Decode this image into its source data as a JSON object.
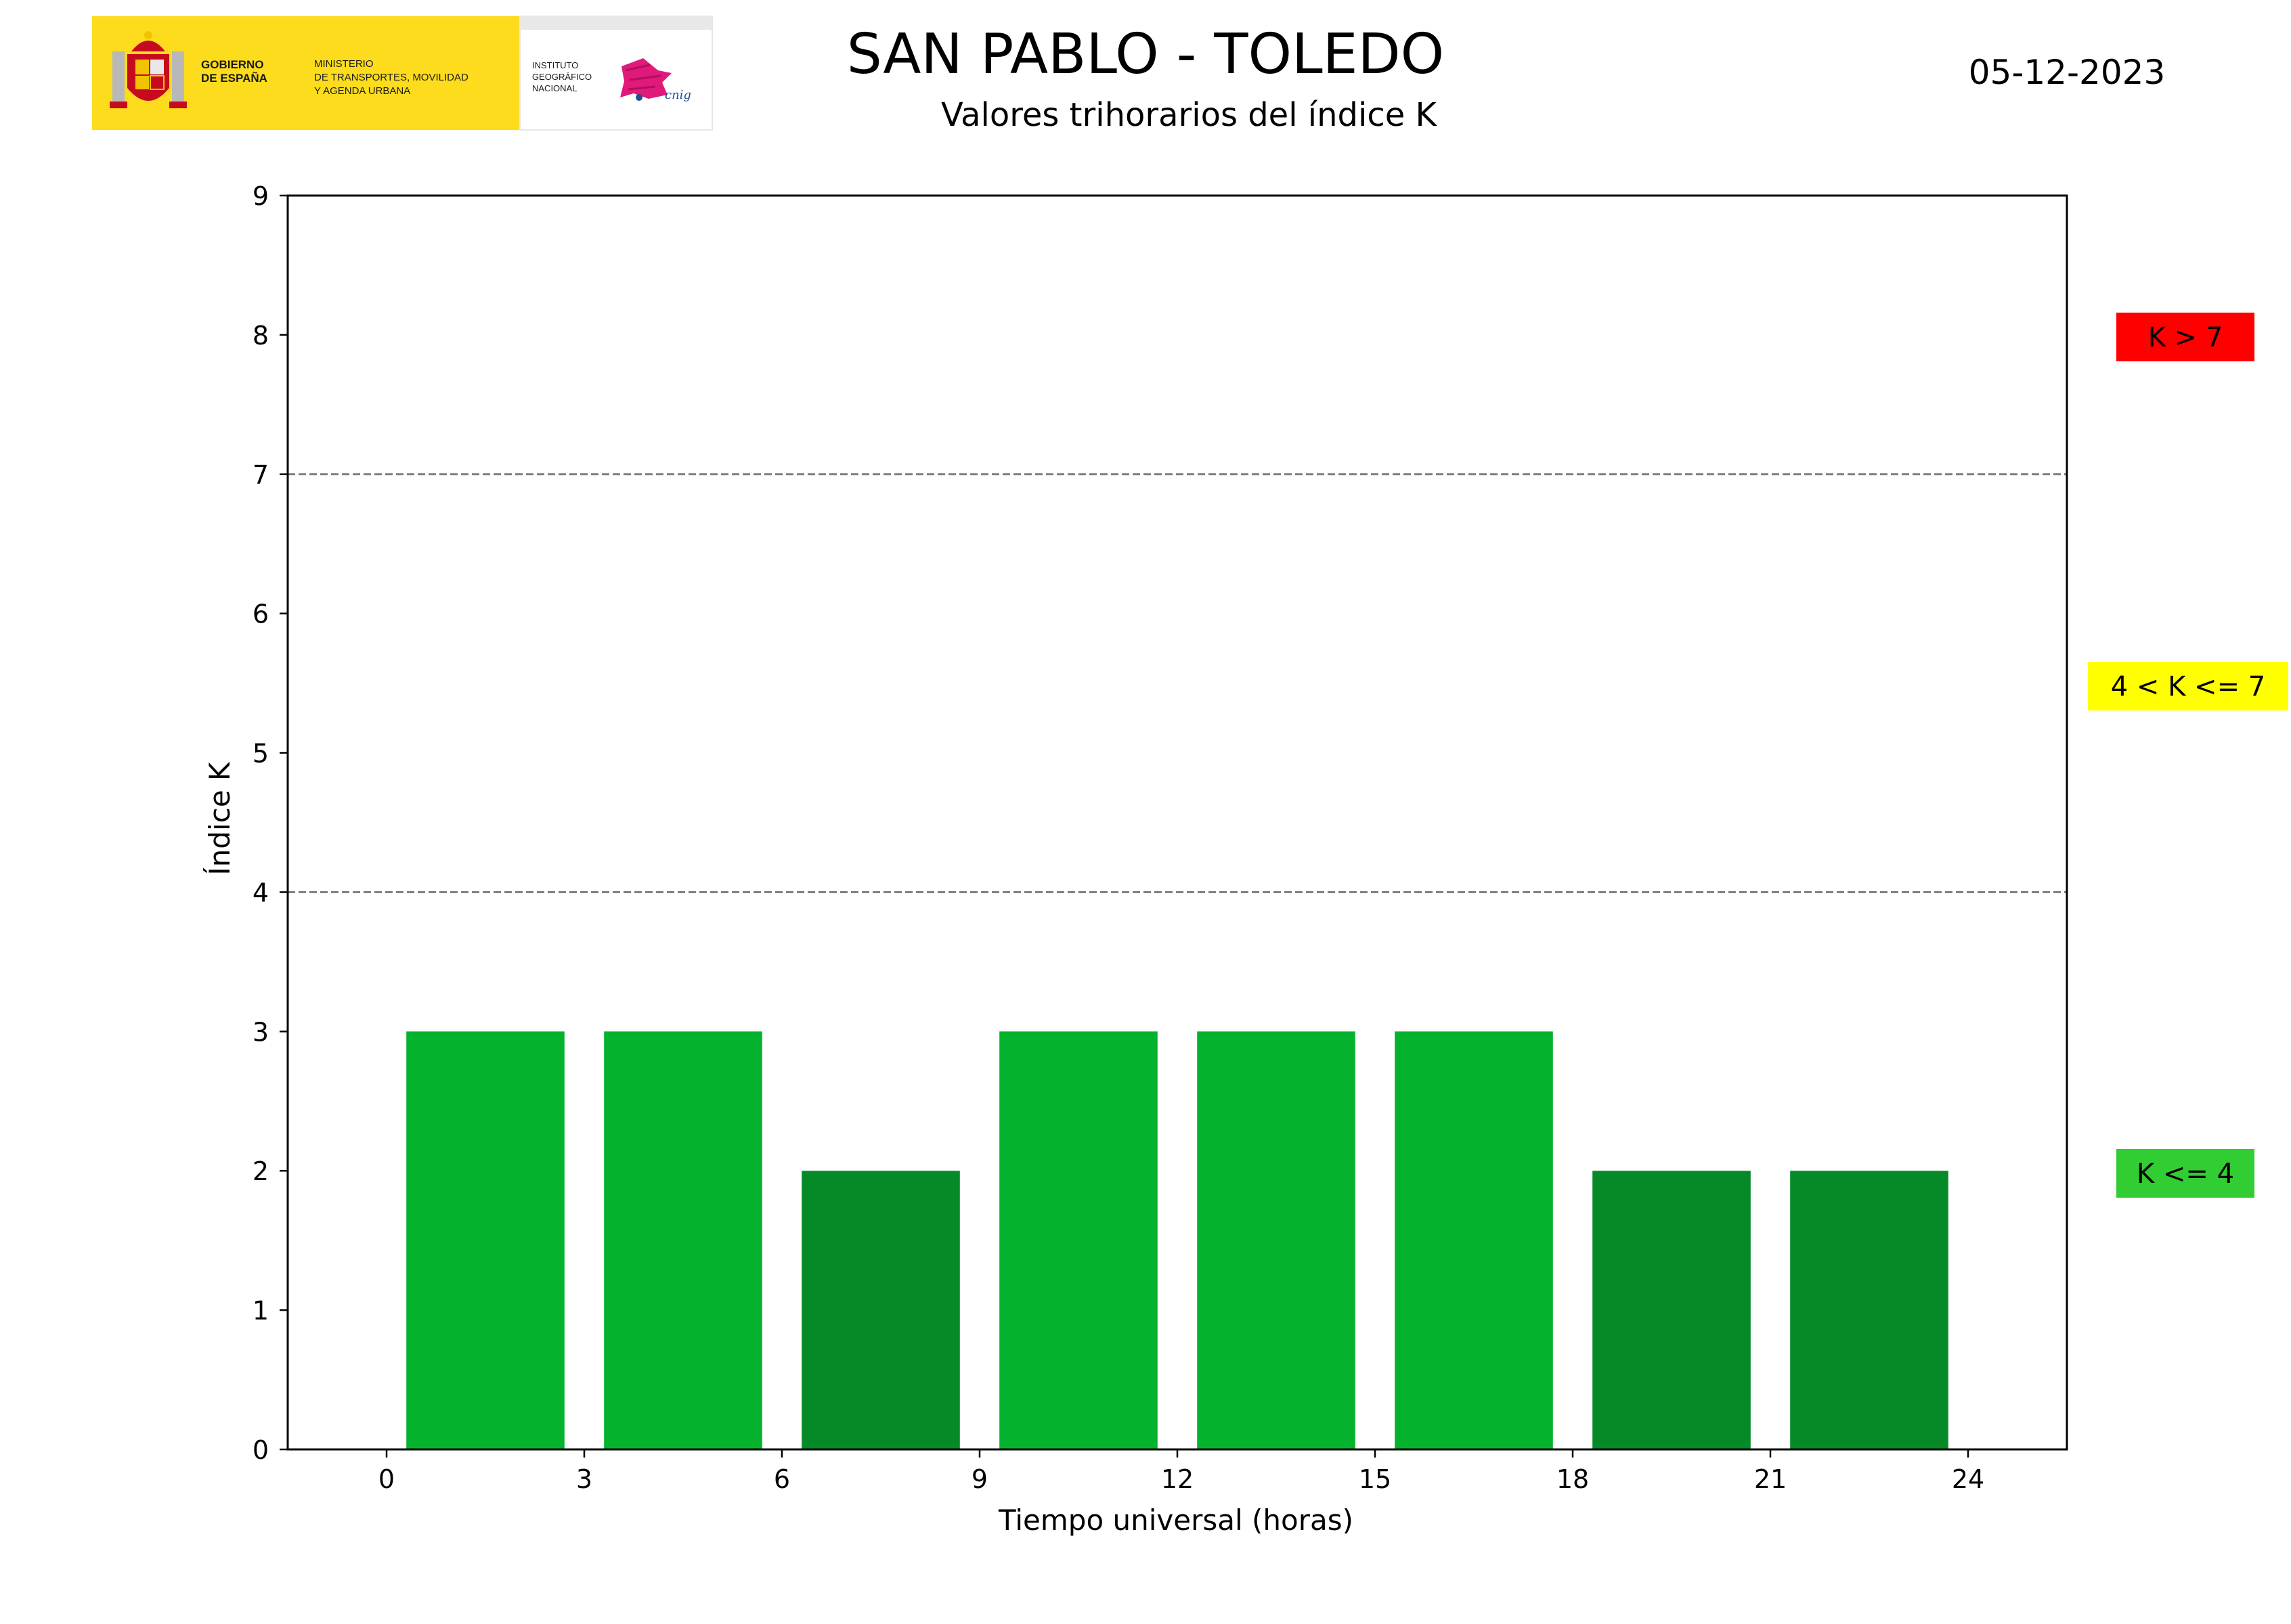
{
  "header": {
    "title": "SAN PABLO - TOLEDO",
    "subtitle": "Valores trihorarios del índice K",
    "date": "05-12-2023"
  },
  "logo": {
    "gobierno": [
      "GOBIERNO",
      "DE ESPAÑA"
    ],
    "ministerio": [
      "MINISTERIO",
      "DE TRANSPORTES, MOVILIDAD",
      "Y AGENDA URBANA"
    ],
    "instituto": [
      "INSTITUTO",
      "GEOGRÁFICO",
      "NACIONAL"
    ],
    "cnig": "cnig",
    "colors": {
      "yellow": "#fcdc1c",
      "red": "#c60b1e",
      "pink": "#e0197a",
      "blue": "#1d4f91"
    }
  },
  "legend": [
    {
      "label": "K > 7",
      "color": "#ff0000"
    },
    {
      "label": "4 < K <= 7",
      "color": "#ffff00"
    },
    {
      "label": "K <= 4",
      "color": "#32cd32"
    }
  ],
  "chart_data": {
    "type": "bar",
    "xlabel": "Tiempo universal (horas)",
    "ylabel": "Índice K",
    "xlim": [
      -1.5,
      25.5
    ],
    "ylim": [
      0,
      9
    ],
    "xticks": [
      0,
      3,
      6,
      9,
      12,
      15,
      18,
      21,
      24
    ],
    "yticks": [
      0,
      1,
      2,
      3,
      4,
      5,
      6,
      7,
      8,
      9
    ],
    "thresholds": [
      4,
      7
    ],
    "bar_width_hours": 2.4,
    "bars": [
      {
        "start": 0,
        "end": 3,
        "value": 3,
        "color": "#04b22e"
      },
      {
        "start": 3,
        "end": 6,
        "value": 3,
        "color": "#04b22e"
      },
      {
        "start": 6,
        "end": 9,
        "value": 2,
        "color": "#058a27"
      },
      {
        "start": 9,
        "end": 12,
        "value": 3,
        "color": "#04b22e"
      },
      {
        "start": 12,
        "end": 15,
        "value": 3,
        "color": "#04b22e"
      },
      {
        "start": 15,
        "end": 18,
        "value": 3,
        "color": "#04b22e"
      },
      {
        "start": 18,
        "end": 21,
        "value": 2,
        "color": "#058a27"
      },
      {
        "start": 21,
        "end": 24,
        "value": 2,
        "color": "#058a27"
      }
    ],
    "grid": false
  }
}
